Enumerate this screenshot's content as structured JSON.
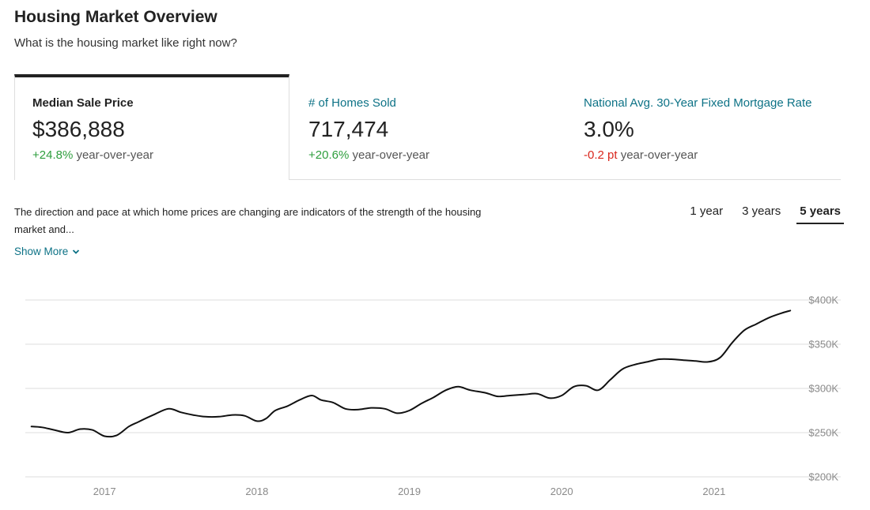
{
  "page": {
    "title": "Housing Market Overview",
    "subtitle": "What is the housing market like right now?"
  },
  "cards": [
    {
      "label": "Median Sale Price",
      "value": "$386,888",
      "change": "+24.8%",
      "change_suffix": " year-over-year",
      "direction": "up",
      "active": true
    },
    {
      "label": "# of Homes Sold",
      "value": "717,474",
      "change": "+20.6%",
      "change_suffix": " year-over-year",
      "direction": "up",
      "active": false
    },
    {
      "label": "National Avg. 30-Year Fixed Mortgage Rate",
      "value": "3.0%",
      "change": "-0.2 pt",
      "change_suffix": " year-over-year",
      "direction": "down",
      "active": false
    }
  ],
  "description": {
    "text": "The direction and pace at which home prices are changing are indicators of the strength of the housing market and...",
    "show_more_label": "Show More"
  },
  "range_tabs": [
    {
      "label": "1 year",
      "active": false
    },
    {
      "label": "3 years",
      "active": false
    },
    {
      "label": "5 years",
      "active": true
    }
  ],
  "colors": {
    "accent": "#0d7286",
    "positive": "#2e9e3d",
    "negative": "#d9261c",
    "line": "#111111",
    "grid": "#dddddd"
  },
  "chart_data": {
    "type": "line",
    "xlabel": "",
    "ylabel": "",
    "x_ticks": [
      "2017",
      "2018",
      "2019",
      "2020",
      "2021"
    ],
    "y_ticks": [
      "$200K",
      "$250K",
      "$300K",
      "$350K",
      "$400K"
    ],
    "ylim": [
      200000,
      400000
    ],
    "xlim": [
      2016.48,
      2021.53
    ],
    "grid": true,
    "series": [
      {
        "x": [
          2016.52,
          2016.59,
          2016.67,
          2016.76,
          2016.84,
          2016.92,
          2017.0,
          2017.08,
          2017.16,
          2017.22,
          2017.32,
          2017.42,
          2017.5,
          2017.58,
          2017.66,
          2017.75,
          2017.84,
          2017.92,
          2018.0,
          2018.06,
          2018.12,
          2018.2,
          2018.28,
          2018.36,
          2018.42,
          2018.5,
          2018.58,
          2018.66,
          2018.75,
          2018.84,
          2018.92,
          2019.0,
          2019.08,
          2019.16,
          2019.24,
          2019.32,
          2019.4,
          2019.5,
          2019.58,
          2019.66,
          2019.75,
          2019.84,
          2019.92,
          2020.0,
          2020.08,
          2020.16,
          2020.24,
          2020.32,
          2020.4,
          2020.48,
          2020.56,
          2020.64,
          2020.72,
          2020.8,
          2020.88,
          2020.96,
          2021.04,
          2021.12,
          2021.2,
          2021.28,
          2021.36,
          2021.44,
          2021.5
        ],
        "y": [
          257000,
          256000,
          253000,
          250000,
          254000,
          253000,
          246000,
          247000,
          257000,
          262000,
          270000,
          277000,
          273000,
          270000,
          268000,
          268000,
          270000,
          269000,
          263000,
          266000,
          275000,
          280000,
          287000,
          292000,
          287000,
          284000,
          277000,
          276000,
          278000,
          277000,
          272000,
          275000,
          283000,
          290000,
          298000,
          302000,
          298000,
          295000,
          291000,
          292000,
          293000,
          294000,
          289000,
          292000,
          302000,
          303000,
          298000,
          310000,
          322000,
          327000,
          330000,
          333000,
          333000,
          332000,
          331000,
          330000,
          335000,
          352000,
          366000,
          373000,
          380000,
          385000,
          388000
        ]
      }
    ]
  }
}
